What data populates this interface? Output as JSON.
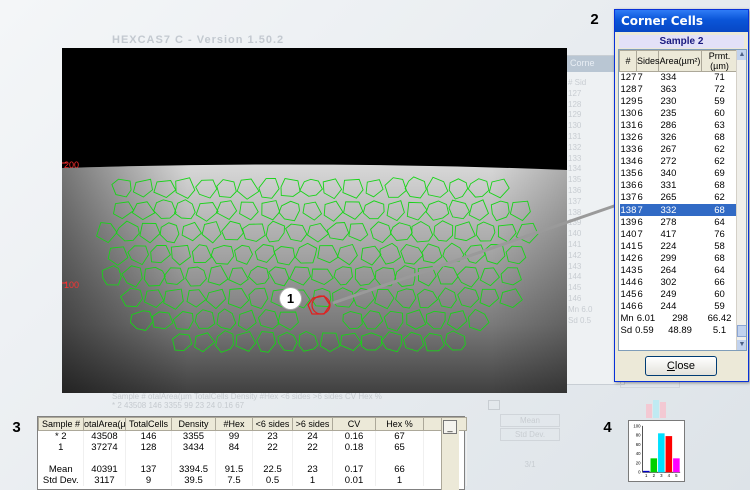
{
  "ghost": {
    "title": "HEXCAS7 C - Version 1.50.2",
    "window_title": "Corne",
    "col_header": "# Sid",
    "rows": [
      "127",
      "128",
      "129",
      "130",
      "131",
      "132",
      "133",
      "134",
      "135",
      "136",
      "137",
      "138",
      "139",
      "140",
      "141",
      "142",
      "143",
      "144",
      "145",
      "146",
      "Mn 6.0",
      "Sd 0.5"
    ],
    "close_label": "Close",
    "table_header": "Sample #   otalArea(µm  TotalCells   Density    #Hex    <6 sides   >6 sides    CV    Hex %",
    "table_row": "  * 2        43508        146        3355        99        23         24       0.16     67",
    "stats": [
      "Mean",
      "Std Dev."
    ],
    "page": "3/1"
  },
  "image": {
    "label_top": "200",
    "label_mid": "100",
    "cell_outline_color": "#18d418",
    "selected_cell_color": "#e02020"
  },
  "callouts": [
    "1",
    "2",
    "3",
    "4"
  ],
  "corner_cells": {
    "title": "Corner Cells",
    "sample_label": "Sample  2",
    "headers": [
      "#",
      "Sides",
      "Area(µm²)",
      "Prmt.(µm)"
    ],
    "rows": [
      [
        "127",
        "7",
        "334",
        "71"
      ],
      [
        "128",
        "7",
        "363",
        "72"
      ],
      [
        "129",
        "5",
        "230",
        "59"
      ],
      [
        "130",
        "6",
        "235",
        "60"
      ],
      [
        "131",
        "6",
        "286",
        "63"
      ],
      [
        "132",
        "6",
        "326",
        "68"
      ],
      [
        "133",
        "6",
        "267",
        "62"
      ],
      [
        "134",
        "6",
        "272",
        "62"
      ],
      [
        "135",
        "6",
        "340",
        "69"
      ],
      [
        "136",
        "6",
        "331",
        "68"
      ],
      [
        "137",
        "6",
        "265",
        "62"
      ],
      [
        "138",
        "7",
        "332",
        "68"
      ],
      [
        "139",
        "6",
        "278",
        "64"
      ],
      [
        "140",
        "7",
        "417",
        "76"
      ],
      [
        "141",
        "5",
        "224",
        "58"
      ],
      [
        "142",
        "6",
        "299",
        "68"
      ],
      [
        "143",
        "5",
        "264",
        "64"
      ],
      [
        "144",
        "6",
        "302",
        "66"
      ],
      [
        "145",
        "6",
        "249",
        "60"
      ],
      [
        "146",
        "6",
        "244",
        "59"
      ]
    ],
    "selected_row": "138",
    "mean": [
      "Mn",
      "6.01",
      "298",
      "66.42"
    ],
    "sd": [
      "Sd",
      "0.59",
      "48.89",
      "5.1"
    ],
    "close_label_u": "C",
    "close_label_rest": "lose"
  },
  "results": {
    "headers": [
      "Sample #",
      "otalArea(µm",
      "TotalCells",
      "Density",
      "#Hex",
      "<6 sides",
      ">6 sides",
      "CV",
      "Hex %"
    ],
    "rows": [
      [
        "* 2",
        "43508",
        "146",
        "3355",
        "99",
        "23",
        "24",
        "0.16",
        "67"
      ],
      [
        "1",
        "37274",
        "128",
        "3434",
        "84",
        "22",
        "22",
        "0.18",
        "65"
      ],
      [
        "",
        "",
        "",
        "",
        "",
        "",
        "",
        "",
        ""
      ],
      [
        "Mean",
        "40391",
        "137",
        "3394.5",
        "91.5",
        "22.5",
        "23",
        "0.17",
        "66"
      ],
      [
        "Std Dev.",
        "3117",
        "9",
        "39.5",
        "7.5",
        "0.5",
        "1",
        "0.01",
        "1"
      ]
    ],
    "scroll_button": "_"
  },
  "chart_data": {
    "type": "bar",
    "categories": [
      "1",
      "2",
      "3",
      "4",
      "5"
    ],
    "values": [
      3,
      30,
      84,
      78,
      30
    ],
    "colors": [
      "#0000c8",
      "#00d000",
      "#00e0ff",
      "#ff0000",
      "#ff00ff"
    ],
    "ylim": [
      0,
      100
    ],
    "yticks": [
      "100",
      "80",
      "60",
      "40",
      "20",
      "0"
    ],
    "title": "",
    "xlabel": "",
    "ylabel": ""
  }
}
